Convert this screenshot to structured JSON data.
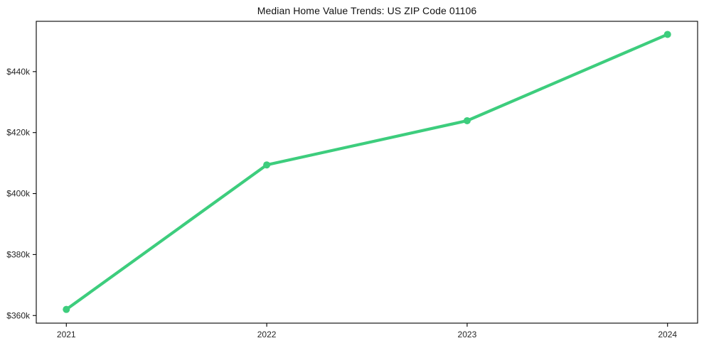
{
  "chart_data": {
    "type": "line",
    "title": "Median Home Value Trends: US ZIP Code 01106",
    "series_name": "median-home-value",
    "categories": [
      "2021",
      "2022",
      "2023",
      "2024"
    ],
    "values": [
      362000,
      409400,
      423900,
      452200
    ],
    "xlabel": "",
    "ylabel": "",
    "ytick_values": [
      360000,
      380000,
      400000,
      420000,
      440000
    ],
    "ytick_labels": [
      "$360k",
      "$380k",
      "$400k",
      "$420k",
      "$440k"
    ],
    "ylim": [
      357500,
      456500
    ],
    "xlim": [
      -0.15,
      3.15
    ],
    "grid": false,
    "legend": "none",
    "marker": "circle",
    "line_color": "#3dcd7d",
    "axis_color": "#000000",
    "tick_text_color": "#262626",
    "title_color": "#111111",
    "background": "#ffffff"
  }
}
